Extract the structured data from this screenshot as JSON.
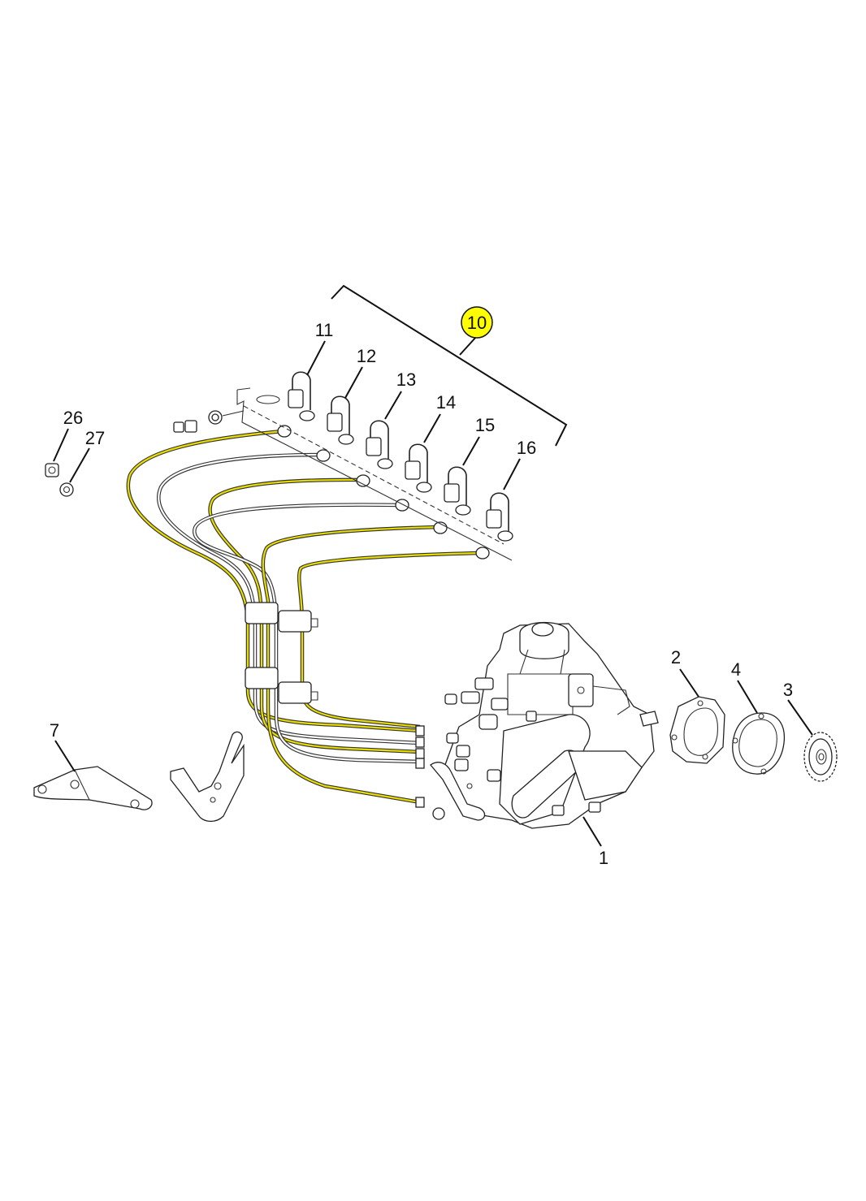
{
  "diagram": {
    "highlight_color": "#ffff00",
    "pipe_color": "#e8dc00",
    "callouts": [
      {
        "id": "c10",
        "label": "10",
        "highlighted": true
      },
      {
        "id": "c11",
        "label": "11"
      },
      {
        "id": "c12",
        "label": "12"
      },
      {
        "id": "c13",
        "label": "13"
      },
      {
        "id": "c14",
        "label": "14"
      },
      {
        "id": "c15",
        "label": "15"
      },
      {
        "id": "c16",
        "label": "16"
      },
      {
        "id": "c26",
        "label": "26"
      },
      {
        "id": "c27",
        "label": "27"
      },
      {
        "id": "c7",
        "label": "7"
      },
      {
        "id": "c2",
        "label": "2"
      },
      {
        "id": "c4",
        "label": "4"
      },
      {
        "id": "c3",
        "label": "3"
      },
      {
        "id": "c1",
        "label": "1"
      }
    ]
  }
}
